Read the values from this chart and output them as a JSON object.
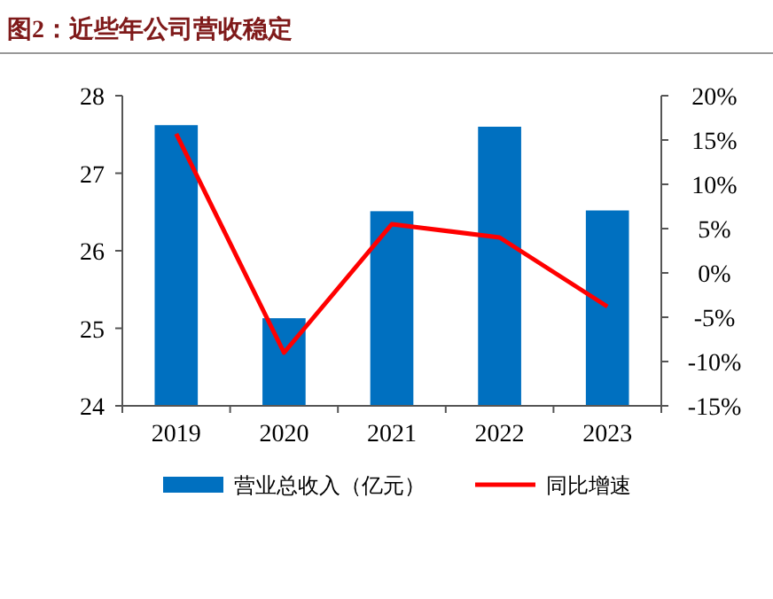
{
  "chart_data": {
    "type": "bar",
    "title": "图2：近些年公司营收稳定",
    "categories": [
      "2019",
      "2020",
      "2021",
      "2022",
      "2023"
    ],
    "series": [
      {
        "name": "营业总收入（亿元）",
        "color": "#0070c0",
        "values": [
          27.62,
          25.13,
          26.51,
          27.6,
          26.52
        ]
      },
      {
        "name": "同比增速",
        "type": "line",
        "axis": "y2",
        "color": "#ff0000",
        "values": [
          15.7,
          -9.0,
          5.5,
          4.0,
          -3.8
        ]
      }
    ],
    "ylim": [
      24,
      28
    ],
    "yticks": [
      24,
      25,
      26,
      27,
      28
    ],
    "y2lim": [
      -15,
      20
    ],
    "y2ticks": [
      {
        "value": -15,
        "label": "-15%"
      },
      {
        "value": -10,
        "label": "-10%"
      },
      {
        "value": -5,
        "label": "-5%"
      },
      {
        "value": 0,
        "label": "0%"
      },
      {
        "value": 5,
        "label": "5%"
      },
      {
        "value": 10,
        "label": "10%"
      },
      {
        "value": 15,
        "label": "15%"
      },
      {
        "value": 20,
        "label": "20%"
      }
    ],
    "grid": false,
    "legend": "bottom",
    "marker": "none",
    "line_style": "solid"
  }
}
